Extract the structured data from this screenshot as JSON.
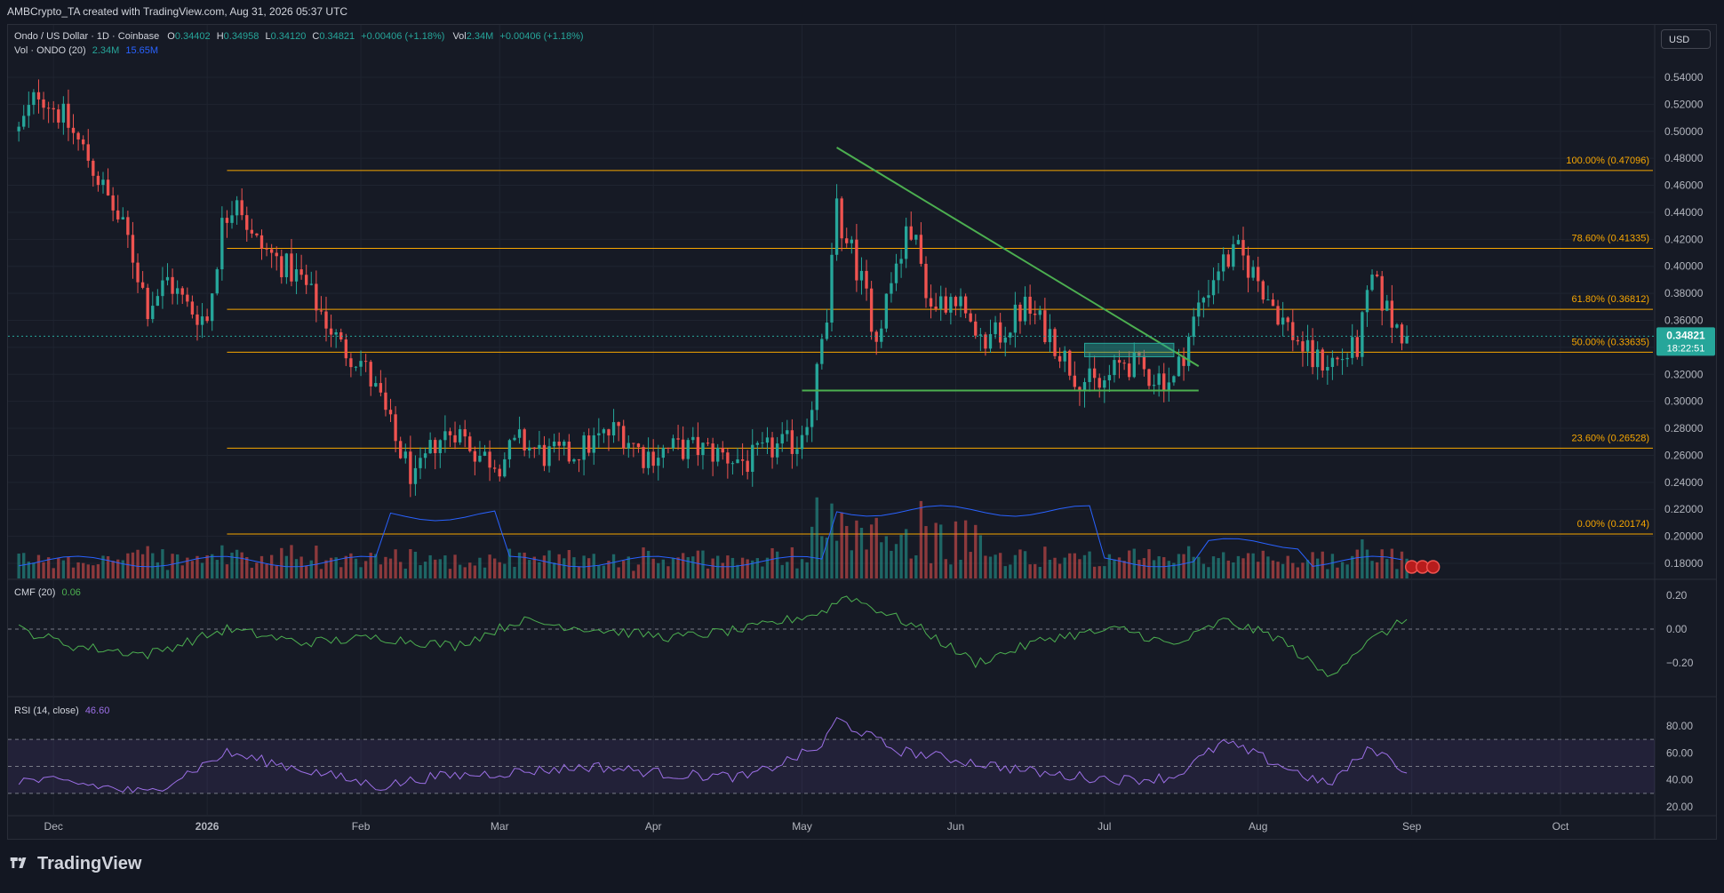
{
  "header": {
    "caption": "AMBCrypto_TA created with TradingView.com, Aug 31, 2026 05:37 UTC"
  },
  "legend": {
    "symbol": "Ondo / US Dollar · 1D · Coinbase",
    "o_label": "O",
    "o_val": "0.34402",
    "h_label": "H",
    "h_val": "0.34958",
    "l_label": "L",
    "l_val": "0.34120",
    "c_label": "C",
    "c_val": "0.34821",
    "change": "+0.00406 (+1.18%)",
    "vol_label": "Vol",
    "vol_val": "2.34M",
    "vol_change": "+0.00406 (+1.18%)",
    "vol_ind": "Vol · ONDO (20)",
    "vol_ind_v1": "2.34M",
    "vol_ind_v2": "15.65M"
  },
  "currency_button": "USD",
  "cmf_legend": {
    "name": "CMF (20)",
    "value": "0.06"
  },
  "rsi_legend": {
    "name": "RSI (14, close)",
    "value": "46.60"
  },
  "price_badge": {
    "price": "0.34821",
    "countdown": "18:22:51"
  },
  "brand": "TradingView",
  "colors": {
    "up": "#26a69a",
    "down": "#ef5350",
    "fib": "#f7a600",
    "trend": "#4caf50",
    "cmf": "#4caf50",
    "rsi": "#9c6fe6",
    "vol_ma": "#2962ff"
  },
  "chart_data": [
    {
      "type": "candlestick",
      "title": "Ondo / US Dollar · 1D · Coinbase",
      "price_axis_ticks": [
        "0.54000",
        "0.52000",
        "0.50000",
        "0.48000",
        "0.46000",
        "0.44000",
        "0.42000",
        "0.40000",
        "0.38000",
        "0.36000",
        "0.34000",
        "0.32000",
        "0.30000",
        "0.28000",
        "0.26000",
        "0.24000",
        "0.22000",
        "0.20000",
        "0.18000"
      ],
      "ylim": [
        0.17,
        0.55
      ],
      "time_axis_ticks": [
        "Dec",
        "2026",
        "Feb",
        "Mar",
        "Apr",
        "May",
        "Jun",
        "Jul",
        "Aug",
        "Sep",
        "Oct"
      ],
      "fib_levels": [
        {
          "label": "100.00% (0.47096)",
          "value": 0.47096
        },
        {
          "label": "78.60% (0.41335)",
          "value": 0.41335
        },
        {
          "label": "61.80% (0.36812)",
          "value": 0.36812
        },
        {
          "label": "50.00% (0.33635)",
          "value": 0.33635
        },
        {
          "label": "23.60% (0.26528)",
          "value": 0.26528
        },
        {
          "label": "0.00% (0.20174)",
          "value": 0.20174
        }
      ],
      "trendline": {
        "from": [
          "2026-05-08",
          0.488
        ],
        "to": [
          "2026-07-20",
          0.326
        ]
      },
      "support": {
        "from": [
          "2026-05-01",
          0.308
        ],
        "to": [
          "2026-07-20",
          0.308
        ],
        "value": 0.308
      },
      "zone": {
        "from": [
          "2026-06-27",
          0.333
        ],
        "to": [
          "2026-07-15",
          0.343
        ]
      },
      "close_path": [
        [
          "2025-11-24",
          0.5
        ],
        [
          "2025-11-28",
          0.53
        ],
        [
          "2025-12-03",
          0.51
        ],
        [
          "2025-12-08",
          0.48
        ],
        [
          "2025-12-12",
          0.45
        ],
        [
          "2025-12-16",
          0.42
        ],
        [
          "2025-12-20",
          0.37
        ],
        [
          "2025-12-24",
          0.39
        ],
        [
          "2025-12-28",
          0.37
        ],
        [
          "2026-01-01",
          0.36
        ],
        [
          "2026-01-04",
          0.43
        ],
        [
          "2026-01-07",
          0.455
        ],
        [
          "2026-01-10",
          0.42
        ],
        [
          "2026-01-15",
          0.405
        ],
        [
          "2026-01-20",
          0.39
        ],
        [
          "2026-01-25",
          0.36
        ],
        [
          "2026-01-28",
          0.34
        ],
        [
          "2026-02-01",
          0.33
        ],
        [
          "2026-02-05",
          0.3
        ],
        [
          "2026-02-08",
          0.27
        ],
        [
          "2026-02-12",
          0.24
        ],
        [
          "2026-02-16",
          0.27
        ],
        [
          "2026-02-20",
          0.28
        ],
        [
          "2026-02-25",
          0.26
        ],
        [
          "2026-03-01",
          0.255
        ],
        [
          "2026-03-05",
          0.27
        ],
        [
          "2026-03-10",
          0.26
        ],
        [
          "2026-03-15",
          0.26
        ],
        [
          "2026-03-20",
          0.27
        ],
        [
          "2026-03-25",
          0.28
        ],
        [
          "2026-03-30",
          0.26
        ],
        [
          "2026-04-05",
          0.265
        ],
        [
          "2026-04-10",
          0.265
        ],
        [
          "2026-04-15",
          0.26
        ],
        [
          "2026-04-20",
          0.255
        ],
        [
          "2026-04-25",
          0.265
        ],
        [
          "2026-04-30",
          0.27
        ],
        [
          "2026-05-03",
          0.3
        ],
        [
          "2026-05-06",
          0.36
        ],
        [
          "2026-05-08",
          0.44
        ],
        [
          "2026-05-12",
          0.4
        ],
        [
          "2026-05-16",
          0.35
        ],
        [
          "2026-05-20",
          0.4
        ],
        [
          "2026-05-23",
          0.43
        ],
        [
          "2026-05-27",
          0.37
        ],
        [
          "2026-06-01",
          0.38
        ],
        [
          "2026-06-05",
          0.34
        ],
        [
          "2026-06-10",
          0.35
        ],
        [
          "2026-06-15",
          0.37
        ],
        [
          "2026-06-20",
          0.35
        ],
        [
          "2026-06-25",
          0.32
        ],
        [
          "2026-06-30",
          0.31
        ],
        [
          "2026-07-05",
          0.33
        ],
        [
          "2026-07-10",
          0.32
        ],
        [
          "2026-07-15",
          0.315
        ],
        [
          "2026-07-20",
          0.37
        ],
        [
          "2026-07-24",
          0.4
        ],
        [
          "2026-07-28",
          0.41
        ],
        [
          "2026-08-01",
          0.39
        ],
        [
          "2026-08-06",
          0.36
        ],
        [
          "2026-08-12",
          0.33
        ],
        [
          "2026-08-17",
          0.33
        ],
        [
          "2026-08-21",
          0.34
        ],
        [
          "2026-08-24",
          0.39
        ],
        [
          "2026-08-28",
          0.36
        ],
        [
          "2026-08-31",
          0.34821
        ]
      ]
    },
    {
      "type": "bar",
      "title": "Vol · ONDO (20)",
      "current": "2.34M",
      "ma": "15.65M"
    },
    {
      "type": "line",
      "title": "CMF (20)",
      "current": 0.06,
      "ylim": [
        -0.3,
        0.25
      ],
      "ticks": [
        "0.20",
        "0.00",
        "−0.20"
      ],
      "path": [
        [
          "2025-11-24",
          0.0
        ],
        [
          "2025-12-05",
          -0.1
        ],
        [
          "2025-12-20",
          -0.15
        ],
        [
          "2026-01-05",
          0.0
        ],
        [
          "2026-01-20",
          -0.08
        ],
        [
          "2026-02-05",
          -0.05
        ],
        [
          "2026-02-20",
          -0.1
        ],
        [
          "2026-03-05",
          0.05
        ],
        [
          "2026-03-20",
          0.0
        ],
        [
          "2026-04-05",
          -0.05
        ],
        [
          "2026-04-20",
          0.0
        ],
        [
          "2026-05-05",
          0.1
        ],
        [
          "2026-05-10",
          0.2
        ],
        [
          "2026-05-25",
          0.0
        ],
        [
          "2026-06-05",
          -0.2
        ],
        [
          "2026-06-20",
          -0.05
        ],
        [
          "2026-07-05",
          0.0
        ],
        [
          "2026-07-15",
          -0.1
        ],
        [
          "2026-07-25",
          0.05
        ],
        [
          "2026-08-05",
          -0.05
        ],
        [
          "2026-08-15",
          -0.28
        ],
        [
          "2026-08-22",
          -0.1
        ],
        [
          "2026-08-31",
          0.06
        ]
      ]
    },
    {
      "type": "line",
      "title": "RSI (14, close)",
      "current": 46.6,
      "ylim": [
        15,
        90
      ],
      "ticks": [
        "80.00",
        "60.00",
        "40.00",
        "20.00"
      ],
      "bands": [
        70,
        50,
        30
      ],
      "path": [
        [
          "2025-11-24",
          40
        ],
        [
          "2025-12-05",
          38
        ],
        [
          "2025-12-20",
          30
        ],
        [
          "2026-01-05",
          60
        ],
        [
          "2026-01-20",
          48
        ],
        [
          "2026-02-05",
          35
        ],
        [
          "2026-02-15",
          42
        ],
        [
          "2026-03-01",
          45
        ],
        [
          "2026-03-20",
          50
        ],
        [
          "2026-04-05",
          44
        ],
        [
          "2026-04-20",
          42
        ],
        [
          "2026-05-05",
          65
        ],
        [
          "2026-05-08",
          85
        ],
        [
          "2026-05-20",
          62
        ],
        [
          "2026-06-01",
          55
        ],
        [
          "2026-06-20",
          44
        ],
        [
          "2026-07-05",
          40
        ],
        [
          "2026-07-15",
          42
        ],
        [
          "2026-07-25",
          68
        ],
        [
          "2026-08-01",
          58
        ],
        [
          "2026-08-15",
          36
        ],
        [
          "2026-08-24",
          64
        ],
        [
          "2026-08-31",
          46.6
        ]
      ]
    }
  ]
}
